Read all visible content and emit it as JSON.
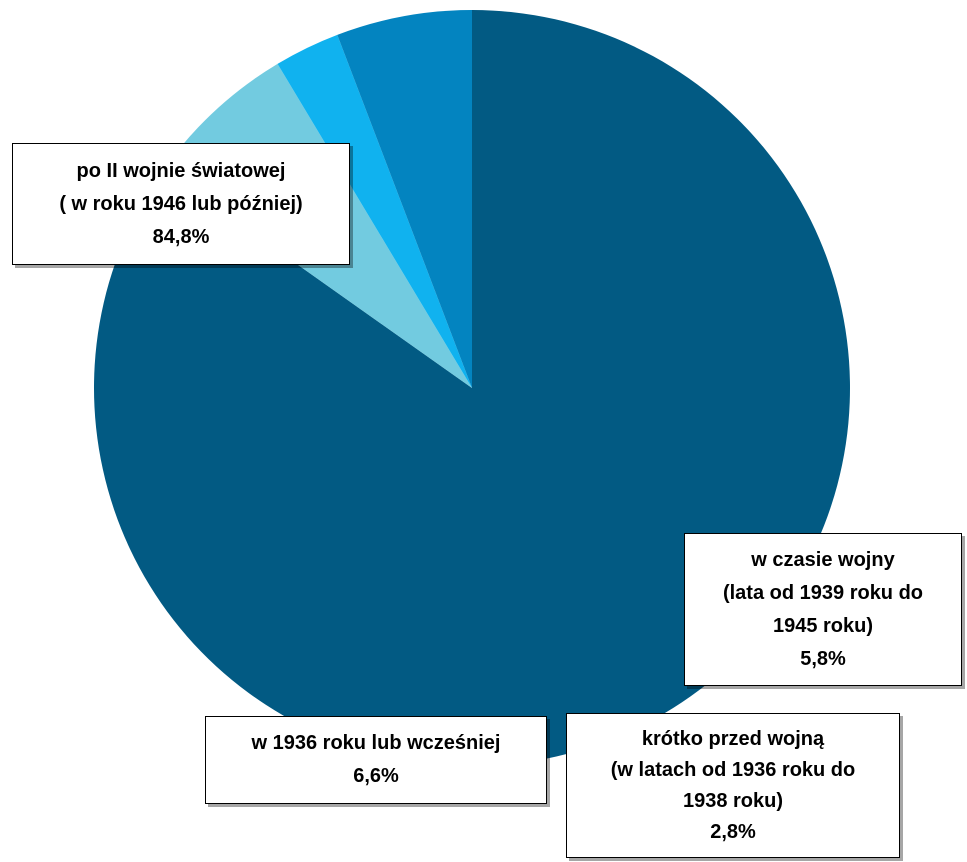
{
  "chart_data": {
    "type": "pie",
    "title": "",
    "start_angle_deg": 0,
    "direction": "clockwise",
    "slices": [
      {
        "label_lines": [
          "po II wojnie światowej",
          "( w roku 1946 lub później)"
        ],
        "value_label": "84,8%",
        "value": 84.8,
        "color": "#025a83"
      },
      {
        "label_lines": [
          "w 1936 roku lub wcześniej"
        ],
        "value_label": "6,6%",
        "value": 6.6,
        "color": "#72cbe0"
      },
      {
        "label_lines": [
          "krótko przed wojną",
          "(w latach od 1936 roku do",
          "1938 roku)"
        ],
        "value_label": "2,8%",
        "value": 2.8,
        "color": "#10b2ef"
      },
      {
        "label_lines": [
          "w czasie wojny",
          "(lata od 1939 roku do",
          "1945 roku)"
        ],
        "value_label": "5,8%",
        "value": 5.8,
        "color": "#0384c0"
      }
    ]
  }
}
